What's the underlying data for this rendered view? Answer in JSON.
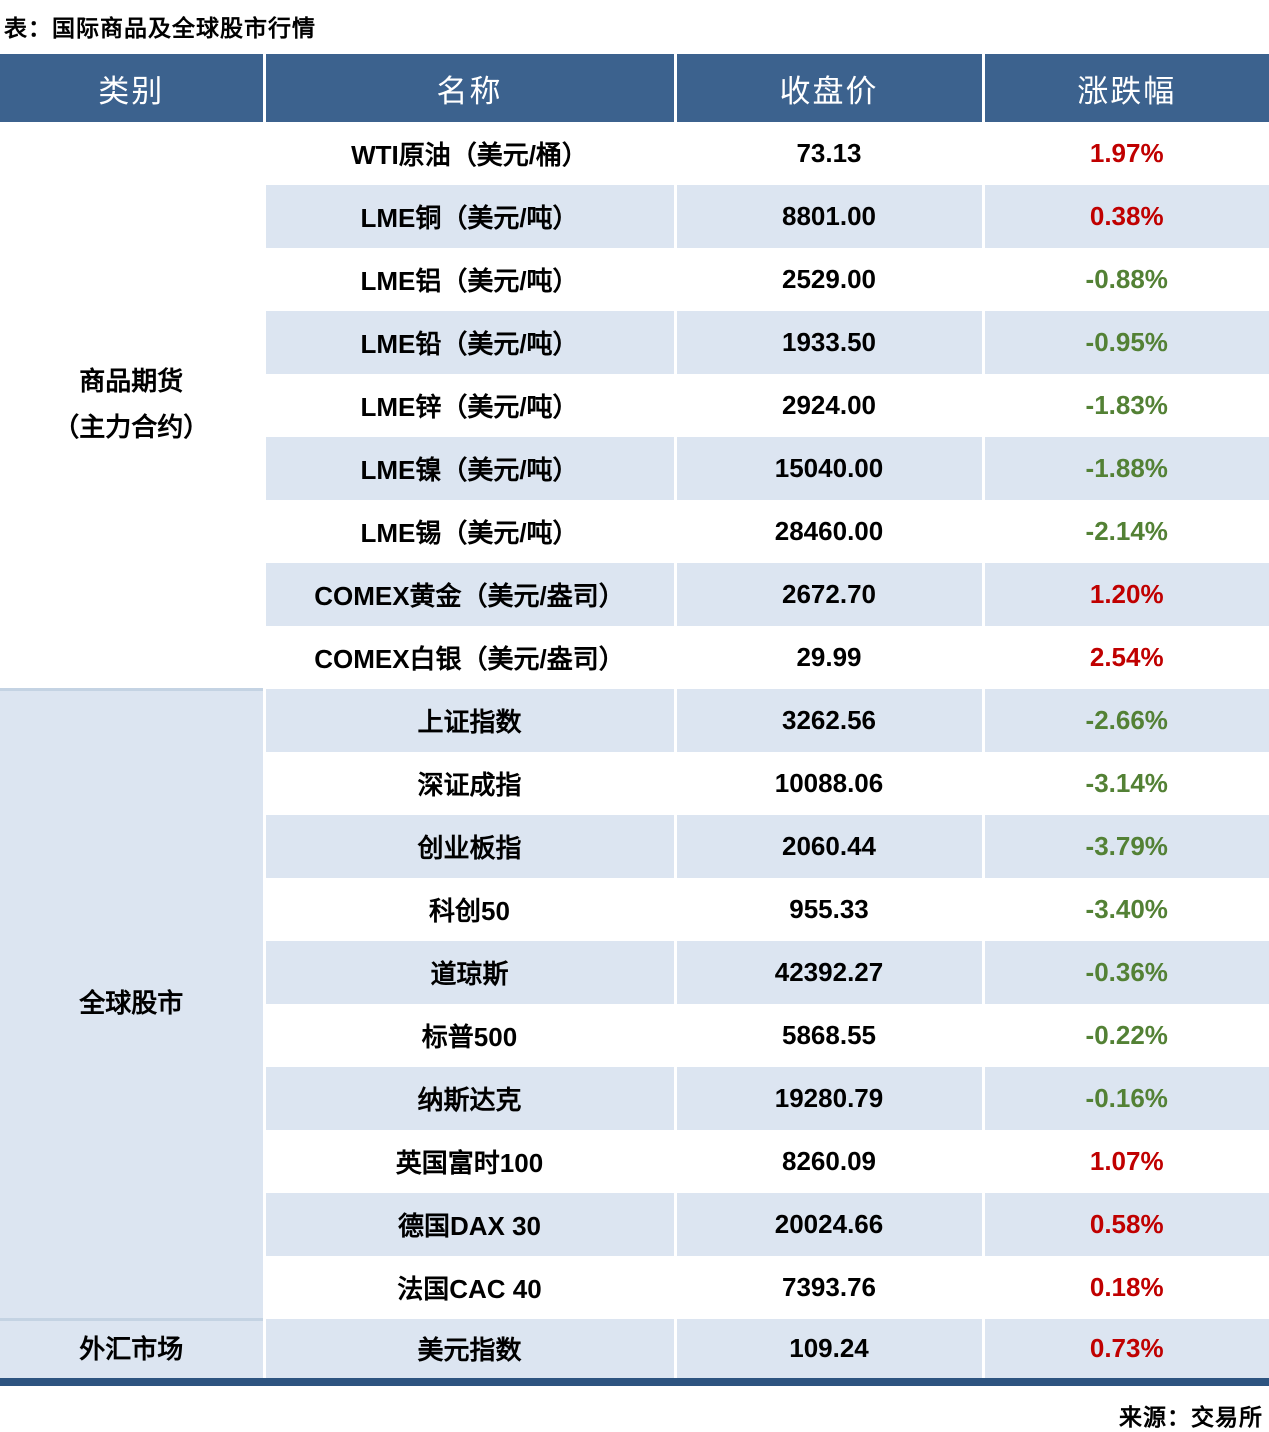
{
  "chart_data": {
    "type": "table",
    "title": "表：国际商品及全球股市行情",
    "source": "来源：交易所",
    "columns": [
      "类别",
      "名称",
      "收盘价",
      "涨跌幅"
    ],
    "groups": [
      {
        "category": "商品期货（主力合约）",
        "category_lines": [
          "商品期货",
          "（主力合约）"
        ],
        "rows": [
          [
            "WTI原油（美元/桶）",
            "73.13",
            "1.97%"
          ],
          [
            "LME铜（美元/吨）",
            "8801.00",
            "0.38%"
          ],
          [
            "LME铝（美元/吨）",
            "2529.00",
            "-0.88%"
          ],
          [
            "LME铅（美元/吨）",
            "1933.50",
            "-0.95%"
          ],
          [
            "LME锌（美元/吨）",
            "2924.00",
            "-1.83%"
          ],
          [
            "LME镍（美元/吨）",
            "15040.00",
            "-1.88%"
          ],
          [
            "LME锡（美元/吨）",
            "28460.00",
            "-2.14%"
          ],
          [
            "COMEX黄金（美元/盎司）",
            "2672.70",
            "1.20%"
          ],
          [
            "COMEX白银（美元/盎司）",
            "29.99",
            "2.54%"
          ]
        ]
      },
      {
        "category": "全球股市",
        "category_lines": [
          "全球股市"
        ],
        "rows": [
          [
            "上证指数",
            "3262.56",
            "-2.66%"
          ],
          [
            "深证成指",
            "10088.06",
            "-3.14%"
          ],
          [
            "创业板指",
            "2060.44",
            "-3.79%"
          ],
          [
            "科创50",
            "955.33",
            "-3.40%"
          ],
          [
            "道琼斯",
            "42392.27",
            "-0.36%"
          ],
          [
            "标普500",
            "5868.55",
            "-0.22%"
          ],
          [
            "纳斯达克",
            "19280.79",
            "-0.16%"
          ],
          [
            "英国富时100",
            "8260.09",
            "1.07%"
          ],
          [
            "德国DAX 30",
            "20024.66",
            "0.58%"
          ],
          [
            "法国CAC 40",
            "7393.76",
            "0.18%"
          ]
        ]
      },
      {
        "category": "外汇市场",
        "category_lines": [
          "外汇市场"
        ],
        "rows": [
          [
            "美元指数",
            "109.24",
            "0.73%"
          ]
        ]
      }
    ],
    "layout_hints": {
      "stripes": "odd rows white, even rows light blue",
      "up_is_red_down_is_green": true
    }
  },
  "colors": {
    "header_bg": "#3C628E",
    "row_alt_bg": "#DCE5F1",
    "up_color": "#C00000",
    "down_color": "#538135",
    "group_sep": "#C4D3E3",
    "bottom_bar": "#2D5480",
    "header_text": "#FFFFFF",
    "body_text": "#000000"
  }
}
